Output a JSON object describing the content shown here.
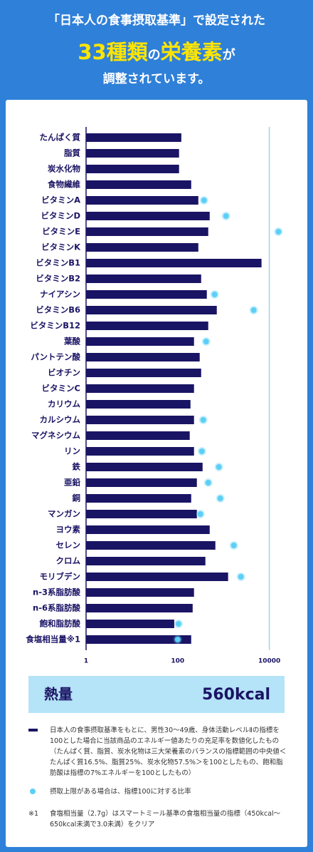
{
  "header": {
    "line1": "「日本人の食事摂取基準」で設定された",
    "line2": [
      "33種類",
      "の",
      "栄養素",
      "が"
    ],
    "line3": "調整されています。"
  },
  "chart_data": {
    "type": "bar",
    "orientation": "horizontal",
    "log_scale": true,
    "categories": [
      "たんぱく質",
      "脂質",
      "炭水化物",
      "食物繊維",
      "ビタミンA",
      "ビタミンD",
      "ビタミンE",
      "ビタミンK",
      "ビタミンB1",
      "ビタミンB2",
      "ナイアシン",
      "ビタミンB6",
      "ビタミンB12",
      "葉酸",
      "パントテン酸",
      "ビオチン",
      "ビタミンC",
      "カリウム",
      "カルシウム",
      "マグネシウム",
      "リン",
      "鉄",
      "亜鉛",
      "銅",
      "マンガン",
      "ヨウ素",
      "セレン",
      "クロム",
      "モリブデン",
      "n-3系脂肪酸",
      "n-6系脂肪酸",
      "飽和脂肪酸",
      "食塩相当量※1"
    ],
    "series": [
      {
        "name": "日本人の食事摂取基準をもとに、男性30〜49歳、身体活動レベルⅡの指標を100とした場合に当該商品のエネルギー値あたりの充足率を数値化したもの（たんぱく質、脂質、炭水化物は三大栄養素のバランスの指標範囲の中央値＜たんぱく質16.5%、脂質25%、炭水化物57.5%＞を100としたもの、飽和脂肪酸は指標の7%エネルギーを100としたもの）",
        "color": "#1a1464",
        "mark": "bar",
        "values": [
          120,
          107,
          107,
          197,
          282,
          499,
          464,
          282,
          6750,
          325,
          432,
          713,
          464,
          227,
          302,
          325,
          227,
          190,
          227,
          183,
          227,
          349,
          262,
          197,
          262,
          499,
          664,
          402,
          1260,
          227,
          212,
          84,
          197
        ]
      },
      {
        "name": "摂取上限がある場合は、指標100に対する比率",
        "color": "#5ccff5",
        "mark": "dot",
        "values": [
          null,
          null,
          null,
          null,
          375,
          1133,
          15800,
          null,
          null,
          null,
          640,
          4560,
          null,
          417,
          null,
          null,
          null,
          null,
          361,
          null,
          337,
          792,
          464,
          851,
          313,
          null,
          1679,
          null,
          2400,
          null,
          null,
          104,
          100
        ]
      }
    ],
    "xlim": [
      1,
      20000
    ],
    "xticks": [
      1,
      100,
      10000
    ],
    "energy": {
      "label": "熱量",
      "value": "560kcal"
    },
    "footnote": {
      "mark": "※1",
      "text": "食塩相当量（2.7g）はスマートミール基準の食塩相当量の指標（450kcal〜650kcal未満で3.0未満）をクリア"
    }
  }
}
